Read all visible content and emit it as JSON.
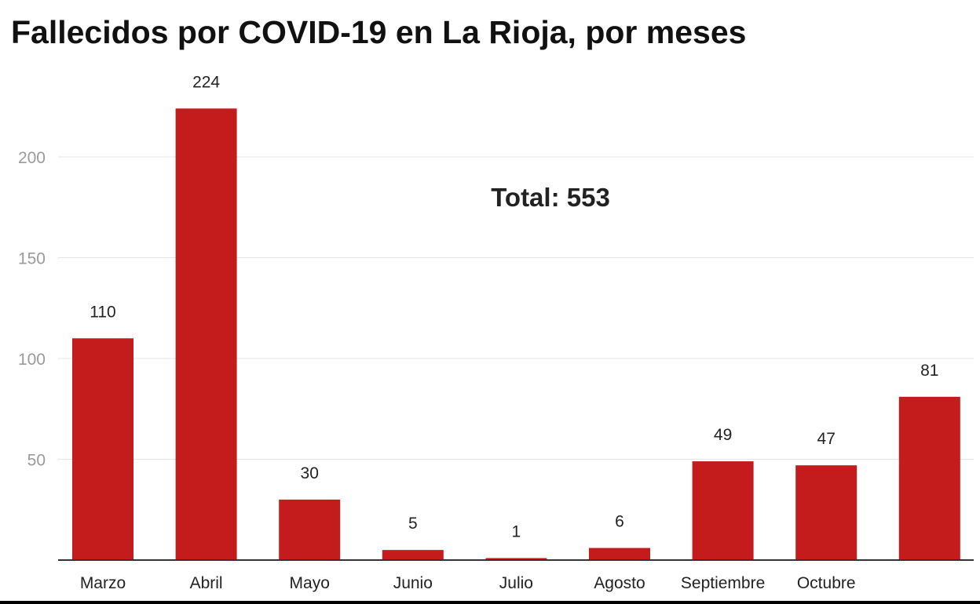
{
  "chart_data": {
    "type": "bar",
    "title": "Fallecidos por COVID-19 en La Rioja, por meses",
    "categories": [
      "Marzo",
      "Abril",
      "Mayo",
      "Junio",
      "Julio",
      "Agosto",
      "Septiembre",
      "Octubre",
      ""
    ],
    "values": [
      110,
      224,
      30,
      5,
      1,
      6,
      49,
      47,
      81
    ],
    "data_labels": [
      "110",
      "224",
      "30",
      "5",
      "1",
      "6",
      "49",
      "47",
      "81"
    ],
    "y_ticks": [
      50,
      100,
      150,
      200
    ],
    "y_tick_labels": [
      "50",
      "100",
      "150",
      "200"
    ],
    "ylim": [
      0,
      230
    ],
    "xlabel": "",
    "ylabel": "",
    "grid": true,
    "bar_color": "#c41c1c",
    "annotation": "Total: 553"
  }
}
